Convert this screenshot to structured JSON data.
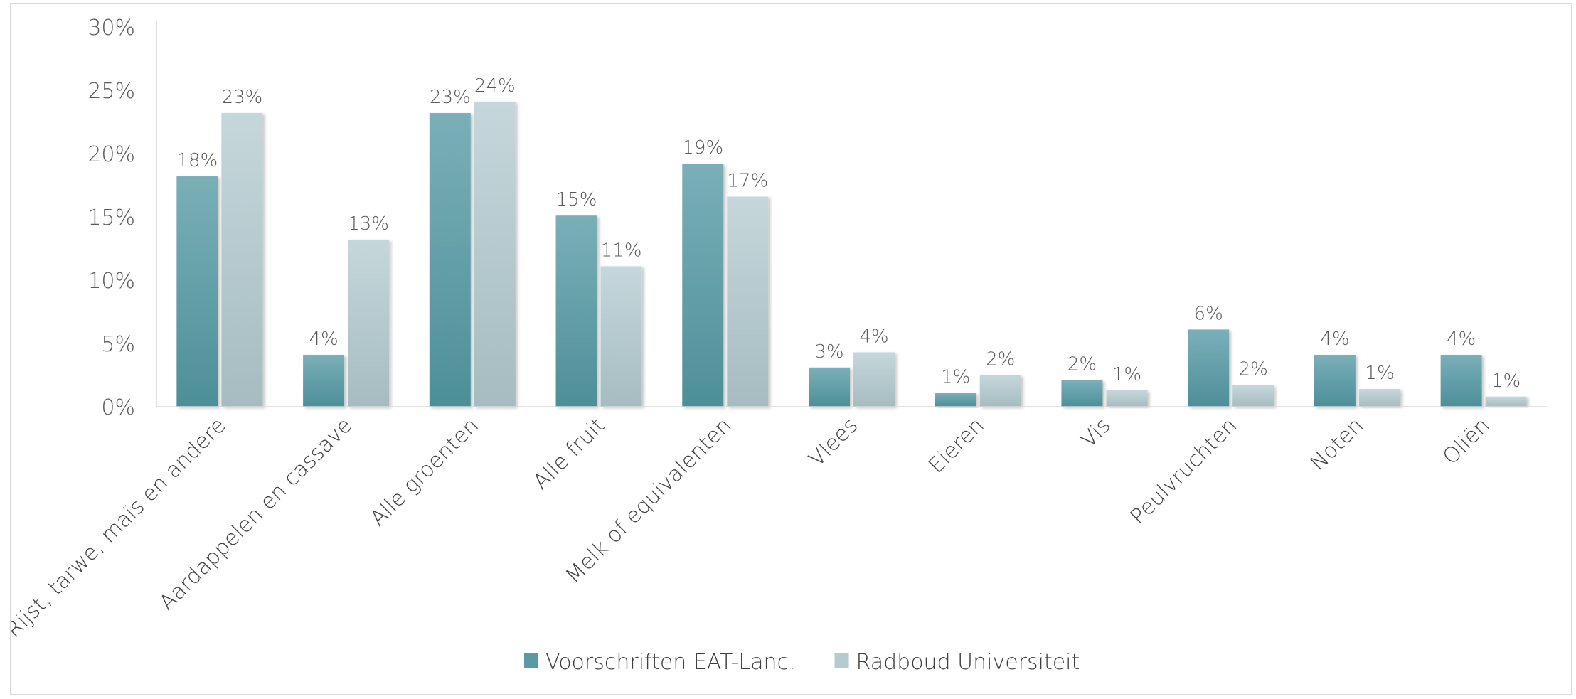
{
  "chart_data": {
    "type": "bar",
    "title": "",
    "xlabel": "",
    "ylabel": "",
    "ylim": [
      0,
      30
    ],
    "yticks": [
      0,
      5,
      10,
      15,
      20,
      25,
      30
    ],
    "ytick_suffix": "%",
    "grid": false,
    "legend_position": "bottom",
    "categories": [
      "Rijst, tarwe, maïs en andere",
      "Aardappelen en cassave",
      "Alle groenten",
      "Alle fruit",
      "Melk of equivalenten",
      "Vlees",
      "Eieren",
      "Vis",
      "Peulvruchten",
      "Noten",
      "Oliën"
    ],
    "series": [
      {
        "name": "Voorschriften EAT-Lanc.",
        "color": "#5b9aa4",
        "color_top": "#7aafb8",
        "color_bottom": "#4d8f99",
        "values": [
          18.2,
          4.1,
          23.2,
          15.1,
          19.2,
          3.1,
          1.1,
          2.1,
          6.1,
          4.1,
          4.1
        ],
        "labels": [
          "18%",
          "4%",
          "23%",
          "15%",
          "19%",
          "3%",
          "1%",
          "2%",
          "6%",
          "4%",
          "4%"
        ]
      },
      {
        "name": "Radboud Universiteit",
        "color": "#b5cbd0",
        "color_top": "#c5d7db",
        "color_bottom": "#a6bcc1",
        "values": [
          23.2,
          13.2,
          24.1,
          11.1,
          16.6,
          4.3,
          2.5,
          1.3,
          1.7,
          1.4,
          0.8
        ],
        "labels": [
          "23%",
          "13%",
          "24%",
          "11%",
          "17%",
          "4%",
          "2%",
          "1%",
          "2%",
          "1%",
          "1%"
        ]
      }
    ]
  }
}
